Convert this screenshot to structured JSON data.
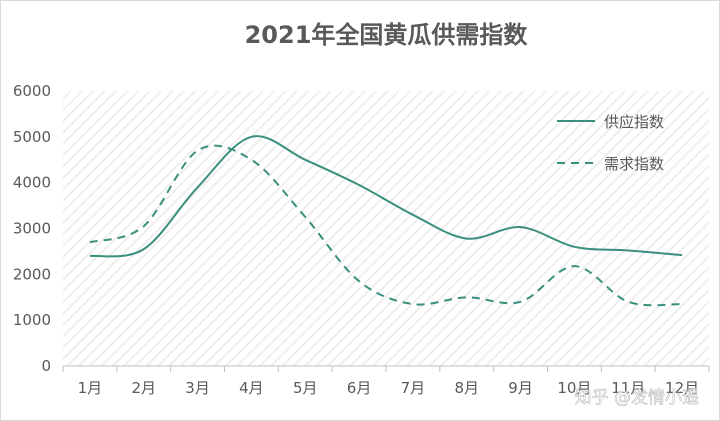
{
  "chart_data": {
    "type": "line",
    "title": "2021年全国黄瓜供需指数",
    "xlabel": "",
    "ylabel": "",
    "categories": [
      "1月",
      "2月",
      "3月",
      "4月",
      "5月",
      "6月",
      "7月",
      "8月",
      "9月",
      "10月",
      "11月",
      "12月"
    ],
    "ylim": [
      0,
      6000
    ],
    "yticks": [
      0,
      1000,
      2000,
      3000,
      4000,
      5000,
      6000
    ],
    "grid": "hatched",
    "legend_position": "top-right",
    "series": [
      {
        "name": "供应指数",
        "style": "solid",
        "color": "#3a8f7e",
        "values": [
          2400,
          2550,
          3900,
          5000,
          4500,
          3950,
          3300,
          2780,
          3030,
          2600,
          2520,
          2420
        ]
      },
      {
        "name": "需求指数",
        "style": "dashed",
        "color": "#3a8f7e",
        "values": [
          2700,
          3050,
          4700,
          4500,
          3250,
          1850,
          1350,
          1500,
          1400,
          2180,
          1400,
          1350
        ]
      }
    ]
  },
  "watermark": "知乎 @发情小遥"
}
